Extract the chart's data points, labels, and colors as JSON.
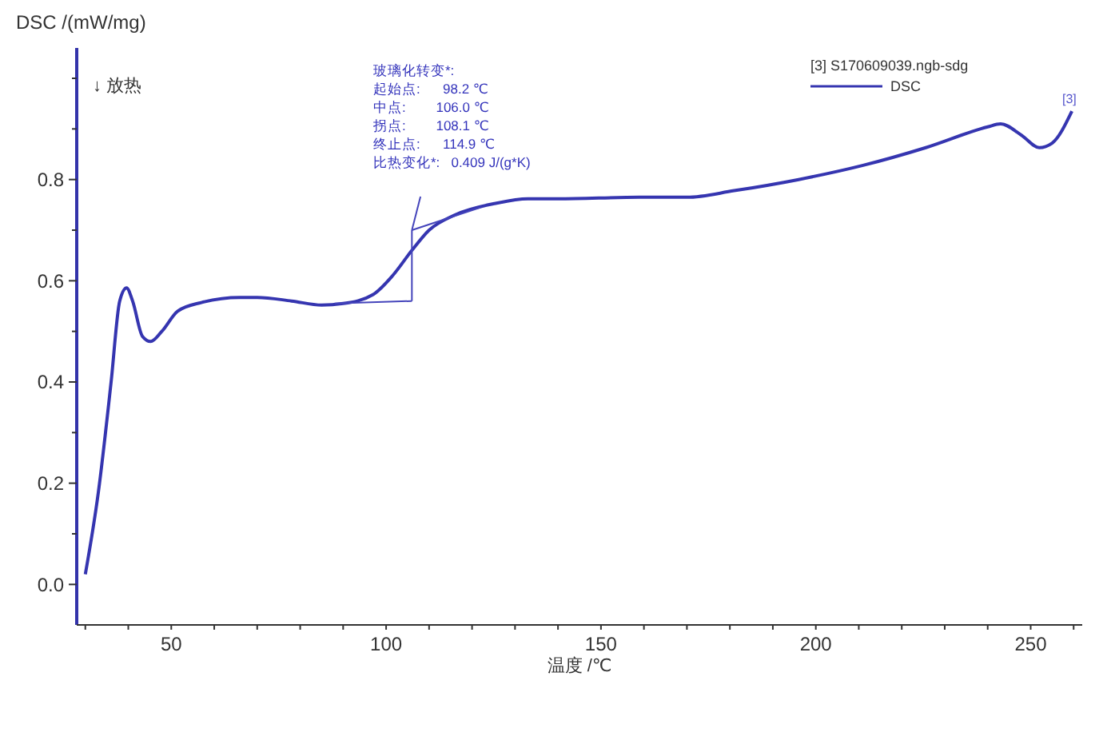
{
  "chart_data": {
    "type": "line",
    "ylabel": "DSC /(mW/mg)",
    "xlabel": "温度 /℃",
    "legend_title": "[3]  S170609039.ngb-sdg",
    "legend": "top right",
    "grid": false,
    "line_style": "solid",
    "marker": "none",
    "annotations": [
      "↓ 放热",
      "玻璃化转变*:",
      "起始点:      98.2 ℃",
      "中点:        106.0 ℃",
      "拐点:        108.1 ℃",
      "终止点:      114.9 ℃",
      "比热变化*:   0.409 J/(g*K)",
      "[3]"
    ],
    "xlim": [
      28,
      262
    ],
    "ylim": [
      -0.08,
      1.06
    ],
    "xticks": [
      {
        "value": 30,
        "label": null
      },
      {
        "value": 40,
        "label": null
      },
      50,
      {
        "value": 60,
        "label": null
      },
      {
        "value": 70,
        "label": null
      },
      {
        "value": 80,
        "label": null
      },
      {
        "value": 90,
        "label": null
      },
      100,
      {
        "value": 110,
        "label": null
      },
      {
        "value": 120,
        "label": null
      },
      {
        "value": 130,
        "label": null
      },
      {
        "value": 140,
        "label": null
      },
      150,
      {
        "value": 160,
        "label": null
      },
      {
        "value": 170,
        "label": null
      },
      {
        "value": 180,
        "label": null
      },
      {
        "value": 190,
        "label": null
      },
      200,
      {
        "value": 210,
        "label": null
      },
      {
        "value": 220,
        "label": null
      },
      {
        "value": 230,
        "label": null
      },
      {
        "value": 240,
        "label": null
      },
      250,
      {
        "value": 260,
        "label": null
      }
    ],
    "yticks": [
      {
        "value": 0,
        "label": "0.0"
      },
      {
        "value": 0.1,
        "label": null
      },
      {
        "value": 0.2,
        "label": "0.2"
      },
      {
        "value": 0.3,
        "label": null
      },
      {
        "value": 0.4,
        "label": "0.4"
      },
      {
        "value": 0.5,
        "label": null
      },
      {
        "value": 0.6,
        "label": "0.6"
      },
      {
        "value": 0.7,
        "label": null
      },
      {
        "value": 0.8,
        "label": "0.8"
      },
      {
        "value": 0.9,
        "label": null
      },
      {
        "value": 1.0,
        "label": null
      }
    ],
    "series": [
      {
        "name": "DSC",
        "color": "#3535b0",
        "x": [
          30,
          33,
          36,
          38,
          39.6,
          41,
          43.3,
          45.2,
          47.8,
          51.5,
          57,
          66,
          70,
          78,
          85,
          90,
          97,
          101.5,
          106,
          110,
          116,
          125.5,
          133,
          140,
          159,
          170,
          181,
          196,
          211,
          225.6,
          240,
          243,
          247.8,
          252,
          255,
          259.6
        ],
        "values": [
          0.02,
          0.18,
          0.4,
          0.56,
          0.586,
          0.56,
          0.49,
          0.48,
          0.5,
          0.54,
          0.557,
          0.567,
          0.567,
          0.56,
          0.552,
          0.555,
          0.573,
          0.61,
          0.66,
          0.7,
          0.73,
          0.753,
          0.762,
          0.762,
          0.765,
          0.765,
          0.778,
          0.8,
          0.828,
          0.863,
          0.904,
          0.91,
          0.888,
          0.863,
          0.872,
          0.935
        ]
      }
    ]
  }
}
